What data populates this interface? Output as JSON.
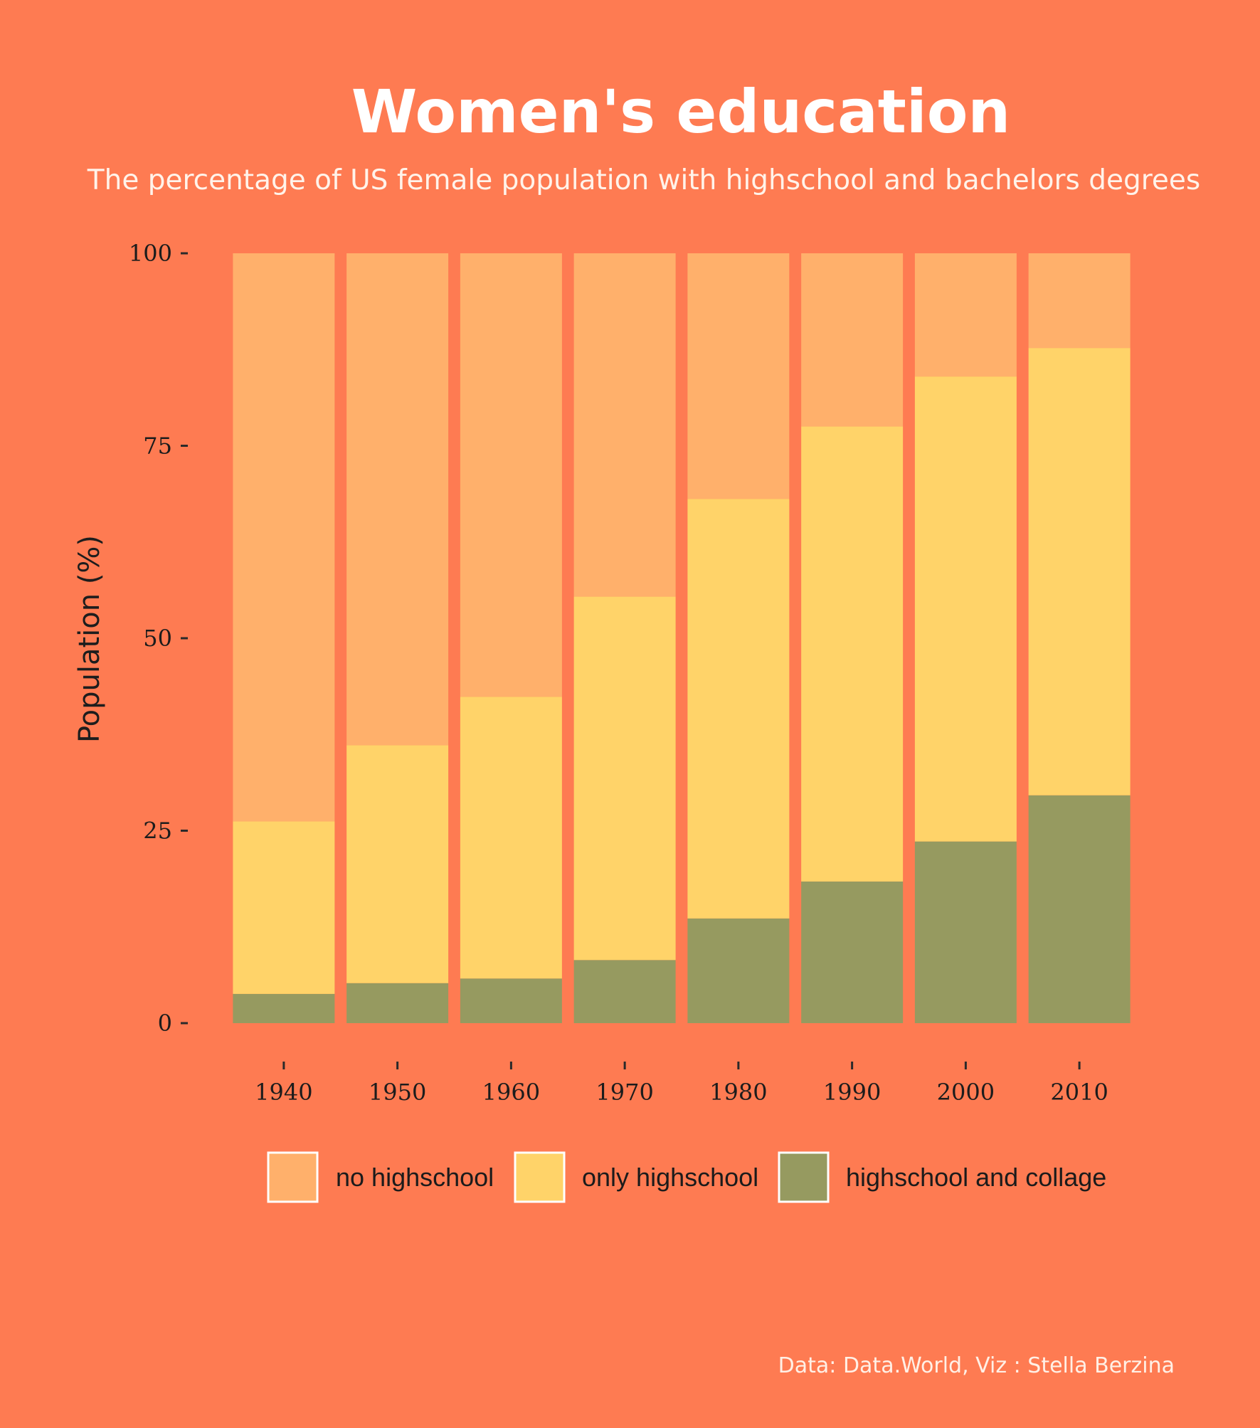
{
  "chart_data": {
    "type": "bar",
    "stacked": true,
    "title": "Women's education",
    "subtitle": "The percentage of US female population with highschool and bachelors degrees",
    "ylabel": "Population (%)",
    "xlabel": "",
    "categories": [
      "1940",
      "1950",
      "1960",
      "1970",
      "1980",
      "1990",
      "2000",
      "2010"
    ],
    "ylim": [
      0,
      100
    ],
    "yticks": [
      "0",
      "25",
      "50",
      "75",
      "100"
    ],
    "series": [
      {
        "name": "highschool and collage",
        "color": "#969a60",
        "values": [
          3.8,
          5.2,
          5.8,
          8.2,
          13.6,
          18.4,
          23.6,
          29.6
        ]
      },
      {
        "name": "only highschool",
        "color": "#ffd369",
        "values": [
          22.4,
          30.9,
          36.6,
          47.2,
          54.5,
          59.1,
          60.4,
          58.1
        ]
      },
      {
        "name": "no highschool",
        "color": "#ffb06b",
        "values": [
          73.8,
          63.9,
          57.6,
          44.6,
          31.9,
          22.5,
          16.0,
          12.3
        ]
      }
    ],
    "legend": {
      "position": "bottom",
      "order": [
        "no highschool",
        "only highschool",
        "highschool and collage"
      ]
    },
    "caption": "Data: Data.World, Viz : Stella Berzina",
    "grid": false,
    "background": "#fe7b52"
  }
}
